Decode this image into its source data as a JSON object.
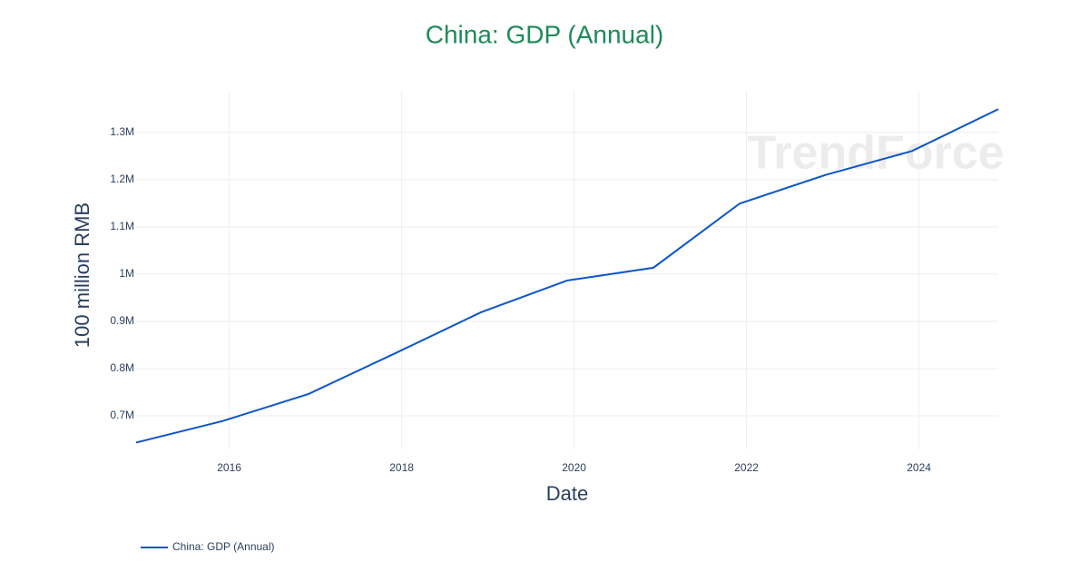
{
  "chart_data": {
    "type": "line",
    "title": "China: GDP (Annual)",
    "x_label": "Date",
    "y_label": "100 million RMB",
    "watermark": "TrendForce",
    "x": [
      2014.92,
      2015.92,
      2016.92,
      2017.92,
      2018.92,
      2019.92,
      2020.92,
      2021.92,
      2022.92,
      2023.92,
      2024.92
    ],
    "series": [
      {
        "name": "China: GDP (Annual)",
        "color": "#0b55c8",
        "values": [
          643563,
          688858,
          746395,
          832036,
          919281,
          986515,
          1013567,
          1149237,
          1210207,
          1260582,
          1349084
        ]
      }
    ],
    "xlim": [
      2014.92,
      2024.92
    ],
    "xticks": [
      2016,
      2018,
      2020,
      2022,
      2024
    ],
    "ylim": [
      629000,
      1388000
    ],
    "yticks": [
      {
        "value": 700000,
        "label": "0.7M"
      },
      {
        "value": 800000,
        "label": "0.8M"
      },
      {
        "value": 900000,
        "label": "0.9M"
      },
      {
        "value": 1000000,
        "label": "1M"
      },
      {
        "value": 1100000,
        "label": "1.1M"
      },
      {
        "value": 1200000,
        "label": "1.2M"
      },
      {
        "value": 1300000,
        "label": "1.3M"
      }
    ],
    "grid": true,
    "legend": "bottom-left"
  }
}
